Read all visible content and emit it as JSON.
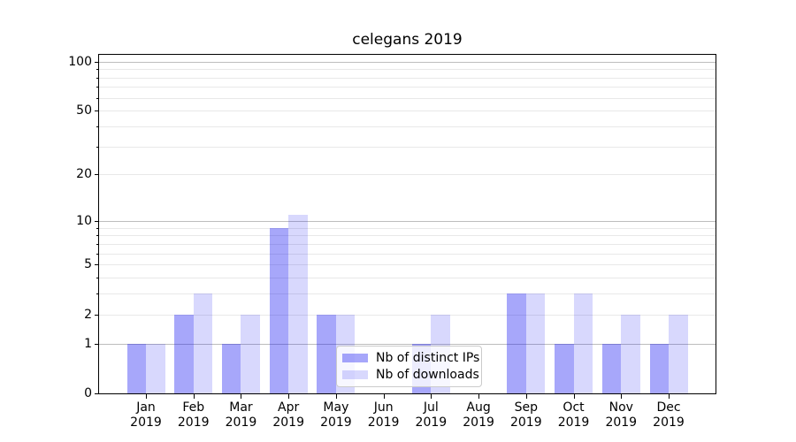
{
  "title": "celegans 2019",
  "chart_data": {
    "type": "bar",
    "title": "celegans 2019",
    "categories": [
      "Jan",
      "Feb",
      "Mar",
      "Apr",
      "May",
      "Jun",
      "Jul",
      "Aug",
      "Sep",
      "Oct",
      "Nov",
      "Dec"
    ],
    "category_year": "2019",
    "series": [
      {
        "name": "Nb of distinct IPs",
        "color": "rgba(10,10,240,0.36)",
        "values": [
          1,
          2,
          1,
          9,
          2,
          0,
          1,
          0,
          3,
          1,
          1,
          1
        ]
      },
      {
        "name": "Nb of downloads",
        "color": "rgba(10,10,240,0.16)",
        "values": [
          1,
          3,
          2,
          11,
          2,
          0,
          2,
          0,
          3,
          3,
          2,
          2
        ]
      }
    ],
    "xlabel": "",
    "ylabel": "",
    "yscale": "log10(1+v)",
    "ylim": [
      0,
      110
    ],
    "yticks": [
      0,
      1,
      2,
      5,
      10,
      20,
      50,
      100
    ],
    "ytick_labels": [
      "0",
      "1",
      "2",
      "5",
      "10",
      "20",
      "50",
      "100"
    ],
    "ygrid_major": [
      1,
      10,
      100
    ],
    "ygrid_minor": [
      2,
      3,
      4,
      5,
      6,
      7,
      8,
      9,
      20,
      30,
      40,
      50,
      60,
      70,
      80,
      90
    ],
    "grid": "horizontal",
    "legend_position": "lower center inside",
    "colors": {
      "grid_major": "#bdbdbd",
      "grid_minor": "#e8e8e8",
      "spine": "#000000",
      "background": "#ffffff"
    }
  }
}
